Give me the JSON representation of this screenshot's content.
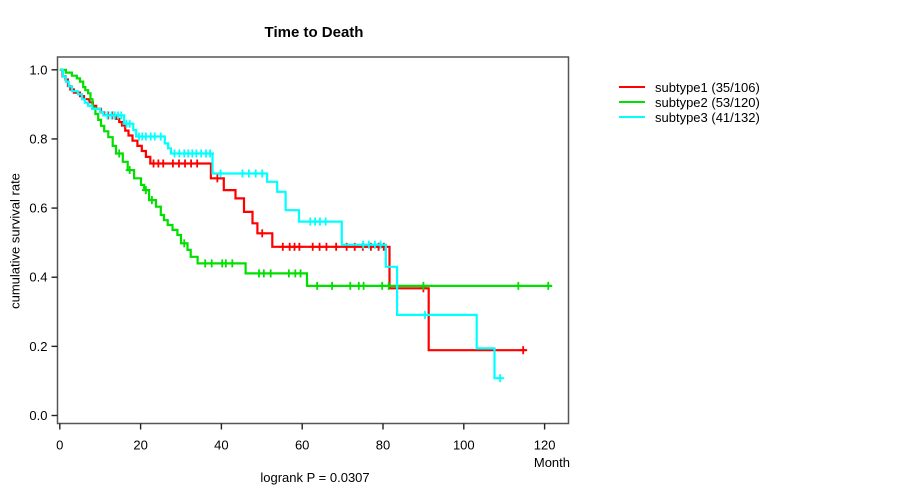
{
  "title": "Time to Death",
  "footnote": "logrank P = 0.0307",
  "axes": {
    "y_label": "cumulative survival rate",
    "x_label": "Month",
    "y_ticks": [
      "0.0",
      "0.2",
      "0.4",
      "0.6",
      "0.8",
      "1.0"
    ],
    "x_ticks": [
      "0",
      "20",
      "40",
      "60",
      "80",
      "100",
      "120"
    ]
  },
  "legend": {
    "position": "right",
    "items": [
      {
        "label": "subtype1 (35/106)",
        "color": "#FF0000"
      },
      {
        "label": "subtype2 (53/120)",
        "color": "#00DF00"
      },
      {
        "label": "subtype3 (41/132)",
        "color": "#00FFFF"
      }
    ]
  },
  "colors": {
    "box": "#555555",
    "tick": "#222222",
    "text": "#000000",
    "background": "#ffffff"
  },
  "chart_data": {
    "type": "line",
    "subtype": "kaplan-meier-step",
    "title": "Time to Death",
    "xlabel": "Month",
    "ylabel": "cumulative survival rate",
    "xlim": [
      0,
      126
    ],
    "ylim": [
      0,
      1.0
    ],
    "x_tick_values": [
      0,
      20,
      40,
      60,
      80,
      100,
      120
    ],
    "y_tick_values": [
      0.0,
      0.2,
      0.4,
      0.6,
      0.8,
      1.0
    ],
    "grid": false,
    "annotation": "logrank P = 0.0307",
    "series": [
      {
        "name": "subtype1 (35/106)",
        "color": "#FF0000",
        "end_month": 115.5,
        "steps": [
          [
            0,
            1.0
          ],
          [
            0.7,
            0.981
          ],
          [
            1.4,
            0.972
          ],
          [
            2.0,
            0.953
          ],
          [
            2.6,
            0.943
          ],
          [
            3.5,
            0.934
          ],
          [
            5.0,
            0.924
          ],
          [
            6.0,
            0.915
          ],
          [
            7.3,
            0.906
          ],
          [
            8.2,
            0.896
          ],
          [
            9.0,
            0.887
          ],
          [
            10.2,
            0.877
          ],
          [
            11.0,
            0.868
          ],
          [
            13.9,
            0.858
          ],
          [
            14.7,
            0.849
          ],
          [
            15.4,
            0.839
          ],
          [
            16.2,
            0.824
          ],
          [
            17.0,
            0.81
          ],
          [
            18.0,
            0.795
          ],
          [
            19.2,
            0.78
          ],
          [
            20.3,
            0.765
          ],
          [
            21.3,
            0.748
          ],
          [
            22.4,
            0.729
          ],
          [
            37.4,
            0.686
          ],
          [
            40.6,
            0.652
          ],
          [
            43.5,
            0.628
          ],
          [
            45.6,
            0.589
          ],
          [
            47.7,
            0.556
          ],
          [
            48.9,
            0.527
          ],
          [
            52.6,
            0.488
          ],
          [
            81.6,
            0.368
          ],
          [
            91.3,
            0.189
          ]
        ],
        "censor_marks": [
          [
            12.0,
            0.868
          ],
          [
            13.0,
            0.868
          ],
          [
            23.2,
            0.729
          ],
          [
            24.4,
            0.729
          ],
          [
            25.6,
            0.729
          ],
          [
            28.0,
            0.729
          ],
          [
            29.5,
            0.729
          ],
          [
            31.0,
            0.729
          ],
          [
            32.5,
            0.729
          ],
          [
            34.0,
            0.729
          ],
          [
            39.0,
            0.686
          ],
          [
            50.1,
            0.527
          ],
          [
            55.2,
            0.488
          ],
          [
            56.9,
            0.488
          ],
          [
            58.1,
            0.488
          ],
          [
            59.3,
            0.488
          ],
          [
            62.6,
            0.488
          ],
          [
            64.3,
            0.488
          ],
          [
            66.0,
            0.488
          ],
          [
            68.4,
            0.488
          ],
          [
            71.0,
            0.488
          ],
          [
            73.0,
            0.488
          ],
          [
            75.0,
            0.488
          ],
          [
            77.0,
            0.488
          ],
          [
            78.9,
            0.488
          ],
          [
            80.2,
            0.488
          ],
          [
            90.0,
            0.368
          ],
          [
            114.7,
            0.189
          ]
        ]
      },
      {
        "name": "subtype2 (53/120)",
        "color": "#00DF00",
        "end_month": 121.8,
        "steps": [
          [
            0,
            1.0
          ],
          [
            1.5,
            0.992
          ],
          [
            3.0,
            0.983
          ],
          [
            4.2,
            0.975
          ],
          [
            5.0,
            0.966
          ],
          [
            5.8,
            0.95
          ],
          [
            6.3,
            0.941
          ],
          [
            7.0,
            0.932
          ],
          [
            7.6,
            0.915
          ],
          [
            8.1,
            0.89
          ],
          [
            8.8,
            0.872
          ],
          [
            9.5,
            0.855
          ],
          [
            10.2,
            0.838
          ],
          [
            11.0,
            0.822
          ],
          [
            12.0,
            0.805
          ],
          [
            13.1,
            0.78
          ],
          [
            13.9,
            0.758
          ],
          [
            15.6,
            0.734
          ],
          [
            16.8,
            0.71
          ],
          [
            18.4,
            0.686
          ],
          [
            20.1,
            0.667
          ],
          [
            20.9,
            0.652
          ],
          [
            22.1,
            0.623
          ],
          [
            23.8,
            0.604
          ],
          [
            25.0,
            0.58
          ],
          [
            25.8,
            0.565
          ],
          [
            26.7,
            0.551
          ],
          [
            27.9,
            0.537
          ],
          [
            29.1,
            0.522
          ],
          [
            30.0,
            0.498
          ],
          [
            31.6,
            0.479
          ],
          [
            32.4,
            0.459
          ],
          [
            34.1,
            0.44
          ],
          [
            46.0,
            0.411
          ],
          [
            61.2,
            0.375
          ]
        ],
        "censor_marks": [
          [
            14.7,
            0.758
          ],
          [
            17.3,
            0.71
          ],
          [
            21.3,
            0.652
          ],
          [
            22.8,
            0.623
          ],
          [
            30.8,
            0.498
          ],
          [
            36.0,
            0.44
          ],
          [
            37.6,
            0.44
          ],
          [
            40.2,
            0.44
          ],
          [
            41.1,
            0.44
          ],
          [
            42.7,
            0.44
          ],
          [
            49.3,
            0.411
          ],
          [
            50.5,
            0.411
          ],
          [
            52.2,
            0.411
          ],
          [
            56.7,
            0.411
          ],
          [
            58.3,
            0.411
          ],
          [
            59.6,
            0.411
          ],
          [
            63.7,
            0.375
          ],
          [
            67.4,
            0.375
          ],
          [
            71.9,
            0.375
          ],
          [
            74.0,
            0.375
          ],
          [
            75.2,
            0.375
          ],
          [
            79.8,
            0.375
          ],
          [
            81.4,
            0.375
          ],
          [
            90.0,
            0.375
          ],
          [
            113.5,
            0.375
          ],
          [
            120.9,
            0.375
          ]
        ]
      },
      {
        "name": "subtype3 (41/132)",
        "color": "#00FFFF",
        "end_month": 109.4,
        "steps": [
          [
            0,
            1.0
          ],
          [
            0.8,
            0.98
          ],
          [
            1.5,
            0.966
          ],
          [
            2.2,
            0.952
          ],
          [
            3.0,
            0.938
          ],
          [
            4.5,
            0.929
          ],
          [
            5.5,
            0.915
          ],
          [
            6.2,
            0.905
          ],
          [
            7.0,
            0.896
          ],
          [
            8.0,
            0.887
          ],
          [
            10.0,
            0.878
          ],
          [
            10.8,
            0.868
          ],
          [
            15.9,
            0.844
          ],
          [
            18.2,
            0.826
          ],
          [
            18.9,
            0.807
          ],
          [
            26.0,
            0.787
          ],
          [
            26.8,
            0.773
          ],
          [
            27.5,
            0.758
          ],
          [
            37.8,
            0.7
          ],
          [
            51.3,
            0.676
          ],
          [
            53.8,
            0.647
          ],
          [
            55.9,
            0.594
          ],
          [
            59.2,
            0.561
          ],
          [
            69.8,
            0.494
          ],
          [
            80.7,
            0.43
          ],
          [
            83.5,
            0.291
          ],
          [
            103.2,
            0.194
          ],
          [
            107.6,
            0.108
          ]
        ],
        "censor_marks": [
          [
            11.8,
            0.868
          ],
          [
            12.8,
            0.868
          ],
          [
            13.6,
            0.868
          ],
          [
            14.4,
            0.868
          ],
          [
            15.2,
            0.868
          ],
          [
            16.5,
            0.844
          ],
          [
            17.3,
            0.844
          ],
          [
            19.6,
            0.807
          ],
          [
            20.4,
            0.807
          ],
          [
            21.3,
            0.807
          ],
          [
            22.5,
            0.807
          ],
          [
            23.5,
            0.807
          ],
          [
            25.0,
            0.807
          ],
          [
            28.4,
            0.758
          ],
          [
            29.6,
            0.758
          ],
          [
            30.8,
            0.758
          ],
          [
            31.8,
            0.758
          ],
          [
            32.8,
            0.758
          ],
          [
            33.8,
            0.758
          ],
          [
            35.0,
            0.758
          ],
          [
            36.2,
            0.758
          ],
          [
            37.2,
            0.758
          ],
          [
            39.8,
            0.7
          ],
          [
            45.2,
            0.7
          ],
          [
            46.8,
            0.7
          ],
          [
            48.5,
            0.7
          ],
          [
            50.1,
            0.7
          ],
          [
            62.0,
            0.561
          ],
          [
            63.2,
            0.561
          ],
          [
            64.4,
            0.561
          ],
          [
            65.8,
            0.561
          ],
          [
            75.1,
            0.494
          ],
          [
            76.5,
            0.494
          ],
          [
            78.0,
            0.494
          ],
          [
            79.4,
            0.494
          ],
          [
            90.4,
            0.291
          ],
          [
            109.0,
            0.108
          ]
        ]
      }
    ]
  }
}
